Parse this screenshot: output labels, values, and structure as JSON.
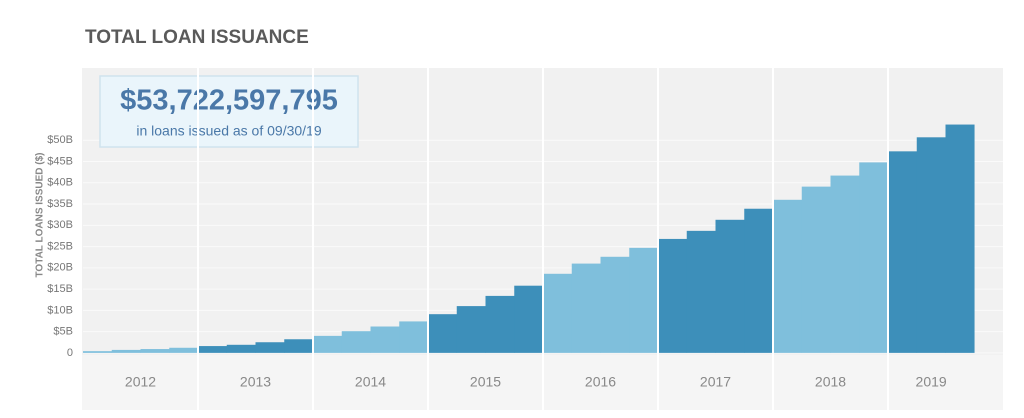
{
  "chart_data": {
    "type": "bar",
    "title": "TOTAL LOAN ISSUANCE",
    "y_label": "TOTAL LOANS ISSUED ($)",
    "annotation": {
      "headline": "$53,722,597,795",
      "text": "in loans issued as of 09/30/19"
    },
    "series": [
      {
        "name": "2012",
        "color": "#7fbfdc",
        "values": [
          0.4,
          0.7,
          0.9,
          1.2
        ]
      },
      {
        "name": "2013",
        "color": "#3d8fba",
        "values": [
          1.6,
          1.9,
          2.5,
          3.2
        ]
      },
      {
        "name": "2014",
        "color": "#7fbfdc",
        "values": [
          4.0,
          5.1,
          6.2,
          7.4
        ]
      },
      {
        "name": "2015",
        "color": "#3d8fba",
        "values": [
          9.1,
          11.0,
          13.4,
          15.8
        ]
      },
      {
        "name": "2016",
        "color": "#7fbfdc",
        "values": [
          18.6,
          21.0,
          22.6,
          24.7
        ]
      },
      {
        "name": "2017",
        "color": "#3d8fba",
        "values": [
          26.8,
          28.7,
          31.3,
          33.9
        ]
      },
      {
        "name": "2018",
        "color": "#7fbfdc",
        "values": [
          36.0,
          39.1,
          41.7,
          44.8
        ]
      },
      {
        "name": "2019",
        "color": "#3d8fba",
        "values": [
          47.4,
          50.7,
          53.7
        ]
      }
    ],
    "ylim": [
      -0.5,
      67
    ],
    "yticks": [
      0,
      {
        "value": 5,
        "label": "$5B"
      },
      {
        "value": 10,
        "label": "$10B"
      },
      {
        "value": 15,
        "label": "$15B"
      },
      {
        "value": 20,
        "label": "$20B"
      },
      {
        "value": 25,
        "label": "$25B"
      },
      {
        "value": 30,
        "label": "$30B"
      },
      {
        "value": 35,
        "label": "$35B"
      },
      {
        "value": 40,
        "label": "$40B"
      },
      {
        "value": 45,
        "label": "$45B"
      },
      {
        "value": 50,
        "label": "$50B"
      }
    ],
    "grid": true
  }
}
